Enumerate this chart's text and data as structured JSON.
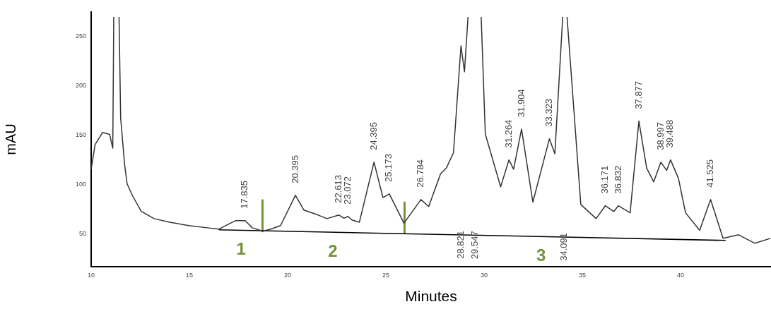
{
  "chart_data": {
    "type": "line",
    "xlabel": "Minutes",
    "ylabel": "mAU",
    "xlim": [
      10,
      44.6
    ],
    "ylim": [
      17,
      275
    ],
    "xticks": [
      10,
      15,
      20,
      25,
      30,
      35,
      40
    ],
    "yticks": [
      50,
      100,
      150,
      200,
      250
    ],
    "grid": false,
    "legend": false,
    "marker": "none",
    "line_style": "solid",
    "series": [
      {
        "color": "#333333",
        "x": [
          10,
          10.2,
          10.58,
          10.94,
          11.1,
          11.15,
          11.2,
          11.38,
          11.42,
          11.5,
          11.7,
          11.83,
          12.1,
          12.55,
          13.2,
          14.0,
          14.96,
          15.9,
          16.5,
          16.98,
          17.34,
          17.835,
          18.2,
          18.74,
          19.14,
          19.64,
          20.395,
          20.83,
          21.55,
          22.0,
          22.613,
          22.87,
          23.072,
          23.27,
          23.65,
          24.395,
          24.85,
          25.173,
          25.92,
          26.784,
          27.18,
          27.78,
          28.08,
          28.44,
          28.821,
          29.0,
          29.18,
          29.22,
          29.82,
          29.85,
          30.06,
          30.84,
          31.264,
          31.5,
          31.904,
          32.48,
          33.323,
          33.6,
          34.0,
          34.02,
          34.2,
          34.22,
          34.92,
          35.7,
          36.171,
          36.6,
          36.832,
          37.43,
          37.877,
          38.27,
          38.63,
          38.997,
          39.29,
          39.488,
          39.89,
          40.25,
          40.97,
          41.525,
          42.16,
          42.95,
          43.78,
          44.57
        ],
        "values": [
          115.7,
          140.7,
          152.9,
          151,
          137,
          270,
          null,
          null,
          270,
          168,
          120.7,
          101,
          89,
          73,
          65.7,
          62,
          58.6,
          56.4,
          55,
          60,
          63.6,
          63.6,
          56.4,
          52.9,
          55,
          58.6,
          89.3,
          74.3,
          69.3,
          65.7,
          69.3,
          66,
          67.9,
          64.3,
          62,
          122.9,
          87,
          90.7,
          61,
          85,
          77.9,
          111,
          117,
          132.4,
          240.7,
          214.5,
          270,
          null,
          null,
          270,
          151.4,
          97.9,
          125.2,
          115.7,
          156.4,
          82.4,
          146.6,
          131.4,
          270,
          null,
          null,
          270,
          80,
          65.7,
          78.8,
          72.9,
          78.8,
          71.6,
          164.5,
          117,
          102.9,
          122.9,
          114.5,
          125.2,
          106.4,
          71.6,
          53.8,
          85,
          45.7,
          49.3,
          40.7,
          45.7
        ]
      },
      {
        "color": "#000000",
        "x": [
          16.5,
          42.29
        ],
        "values": [
          54.3,
          43.6
        ]
      },
      {
        "color": "#76923c",
        "x": [
          18.72,
          18.72
        ],
        "values": [
          84.3,
          52.9
        ]
      },
      {
        "color": "#76923c",
        "x": [
          25.95,
          25.95
        ],
        "values": [
          82,
          51.4
        ]
      }
    ],
    "annotations": [
      {
        "text": "17.835",
        "x": 17.835,
        "y": 63.6
      },
      {
        "text": "20.395",
        "x": 20.395,
        "y": 89.3
      },
      {
        "text": "22.613",
        "x": 22.613,
        "y": 69.3
      },
      {
        "text": "23.072",
        "x": 23.072,
        "y": 67.9
      },
      {
        "text": "24.395",
        "x": 24.395,
        "y": 122.9
      },
      {
        "text": "25.173",
        "x": 25.173,
        "y": 90.7
      },
      {
        "text": "26.784",
        "x": 26.784,
        "y": 85
      },
      {
        "text": "28.821",
        "x": 28.821,
        "y": 49.2
      },
      {
        "text": "29.547",
        "x": 29.547,
        "y": 48.9
      },
      {
        "text": "31.264",
        "x": 31.264,
        "y": 125.2
      },
      {
        "text": "31.904",
        "x": 31.904,
        "y": 156.4
      },
      {
        "text": "33.323",
        "x": 33.323,
        "y": 146.6
      },
      {
        "text": "34.091",
        "x": 34.091,
        "y": 47
      },
      {
        "text": "36.171",
        "x": 36.171,
        "y": 78.8
      },
      {
        "text": "36.832",
        "x": 36.832,
        "y": 78.8
      },
      {
        "text": "37.877",
        "x": 37.877,
        "y": 164.5
      },
      {
        "text": "38.997",
        "x": 38.997,
        "y": 122.9
      },
      {
        "text": "39.488",
        "x": 39.488,
        "y": 125.2
      },
      {
        "text": "41.525",
        "x": 41.525,
        "y": 85
      },
      {
        "text": "1",
        "x": 17.63,
        "y": 53.8
      },
      {
        "text": "2",
        "x": 22.3,
        "y": 51.9
      },
      {
        "text": "3",
        "x": 32.9,
        "y": 47.5
      }
    ]
  }
}
